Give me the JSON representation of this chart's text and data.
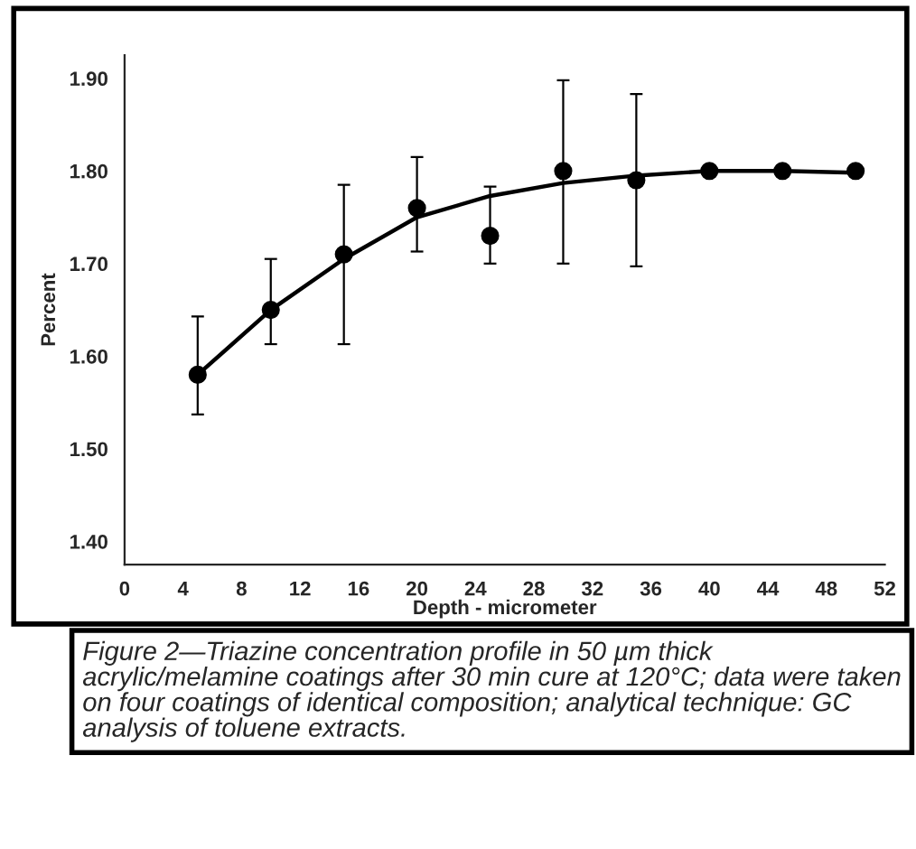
{
  "chart_data": {
    "type": "scatter",
    "xlabel": "Depth - micrometer",
    "ylabel": "Percent",
    "xlim": [
      0,
      52
    ],
    "xticks": [
      0,
      4,
      8,
      12,
      16,
      20,
      24,
      28,
      32,
      36,
      40,
      44,
      48,
      52
    ],
    "ylim": [
      1.375,
      1.925
    ],
    "yticks": [
      {
        "value": 1.4,
        "label": "1.40"
      },
      {
        "value": 1.5,
        "label": "1.50"
      },
      {
        "value": 1.6,
        "label": "1.60"
      },
      {
        "value": 1.7,
        "label": "1.70"
      },
      {
        "value": 1.8,
        "label": "1.80"
      },
      {
        "value": 1.9,
        "label": "1.90"
      }
    ],
    "grid": false,
    "legend": false,
    "series": [
      {
        "color": "#000000",
        "marker": "circle",
        "x": [
          5,
          10,
          15,
          20,
          25,
          30,
          35,
          40,
          45,
          50
        ],
        "values": [
          1.58,
          1.65,
          1.71,
          1.76,
          1.73,
          1.8,
          1.79,
          1.8,
          1.8,
          1.8
        ],
        "errors": [
          [
            1.537,
            1.643
          ],
          [
            1.613,
            1.705
          ],
          [
            1.613,
            1.785
          ],
          [
            1.713,
            1.815
          ],
          [
            1.7,
            1.783
          ],
          [
            1.7,
            1.898
          ],
          [
            1.697,
            1.883
          ],
          null,
          null,
          null
        ]
      },
      {
        "type": "line",
        "color": "#000000",
        "marker": "none",
        "line_style": "solid",
        "x": [
          5,
          10,
          15,
          20,
          25,
          30,
          35,
          40,
          45,
          50
        ],
        "values": [
          1.58,
          1.65,
          1.705,
          1.75,
          1.773,
          1.787,
          1.795,
          1.8,
          1.8,
          1.798
        ]
      }
    ],
    "annotations": [
      "Figure 2—Triazine concentration profile in 50 µm thick acrylic/melamine coatings after 30 min cure at 120°C; data were taken on four coatings of identical composition; analytical technique: GC analysis of toluene extracts."
    ]
  }
}
